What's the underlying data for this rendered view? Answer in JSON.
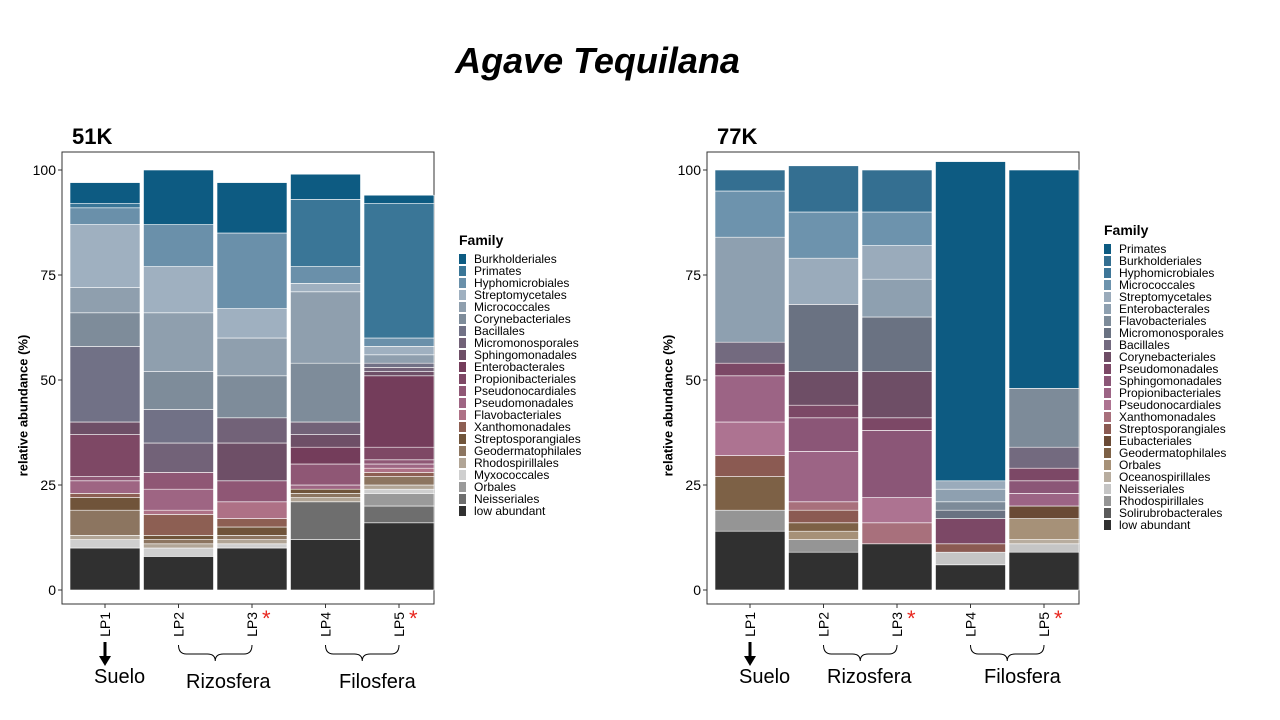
{
  "title": "Agave Tequilana",
  "chart_data": [
    {
      "type": "bar",
      "stacked": true,
      "panel_title": "51K",
      "ylabel": "relative abundance (%)",
      "ylim": [
        0,
        100
      ],
      "yticks": [
        0,
        25,
        50,
        75,
        100
      ],
      "categories": [
        "LP1",
        "LP2",
        "LP3",
        "LP4",
        "LP5"
      ],
      "significant": [
        false,
        false,
        true,
        false,
        true
      ],
      "significance_marker": "*",
      "legend_title": "Family",
      "series": [
        {
          "name": "low abundant",
          "color": "#303030",
          "values": [
            10,
            8,
            10,
            12,
            16
          ]
        },
        {
          "name": "Neisseriales",
          "color": "#6e6e6e",
          "values": [
            0,
            0,
            0,
            9,
            4
          ]
        },
        {
          "name": "Orbales",
          "color": "#9a9a9a",
          "values": [
            0,
            0,
            0,
            0,
            3
          ]
        },
        {
          "name": "Myxococcales",
          "color": "#cfcfcf",
          "values": [
            2,
            2,
            1,
            0,
            1
          ]
        },
        {
          "name": "Rhodospirillales",
          "color": "#b1a596",
          "values": [
            1,
            1,
            1,
            1,
            1
          ]
        },
        {
          "name": "Geodermatophilales",
          "color": "#8c7560",
          "values": [
            6,
            1,
            1,
            1,
            2
          ]
        },
        {
          "name": "Streptosporangiales",
          "color": "#70543a",
          "values": [
            3,
            1,
            2,
            1,
            0
          ]
        },
        {
          "name": "Xanthomonadales",
          "color": "#8d5f53",
          "values": [
            1,
            5,
            2,
            0,
            1
          ]
        },
        {
          "name": "Flavobacteriales",
          "color": "#ae7186",
          "values": [
            0,
            1,
            4,
            0,
            1
          ]
        },
        {
          "name": "Pseudomonadales",
          "color": "#9e6583",
          "values": [
            3,
            5,
            0,
            1,
            1
          ]
        },
        {
          "name": "Pseudonocardiales",
          "color": "#8f5775",
          "values": [
            1,
            4,
            5,
            5,
            1
          ]
        },
        {
          "name": "Propionibacteriales",
          "color": "#7e4865",
          "values": [
            10,
            0,
            0,
            0,
            3
          ]
        },
        {
          "name": "Enterobacterales",
          "color": "#743d5b",
          "values": [
            0,
            0,
            0,
            4,
            17
          ]
        },
        {
          "name": "Sphingomonadales",
          "color": "#6e4f67",
          "values": [
            3,
            0,
            9,
            3,
            1
          ]
        },
        {
          "name": "Micromonosporales",
          "color": "#726278",
          "values": [
            0,
            7,
            6,
            3,
            1
          ]
        },
        {
          "name": "Bacillales",
          "color": "#717186",
          "values": [
            18,
            8,
            0,
            0,
            1
          ]
        },
        {
          "name": "Corynebacteriales",
          "color": "#7e8c9a",
          "values": [
            8,
            9,
            10,
            14,
            0
          ]
        },
        {
          "name": "Micrococcales",
          "color": "#8f9fae",
          "values": [
            6,
            14,
            9,
            17,
            2
          ]
        },
        {
          "name": "Streptomycetales",
          "color": "#9fb0c0",
          "values": [
            15,
            11,
            7,
            2,
            2
          ]
        },
        {
          "name": "Hyphomicrobiales",
          "color": "#6a90aa",
          "values": [
            4,
            10,
            18,
            4,
            2
          ]
        },
        {
          "name": "Primates",
          "color": "#3a7697",
          "values": [
            1,
            0,
            0,
            16,
            32
          ]
        },
        {
          "name": "Burkholderiales",
          "color": "#0d5b82",
          "values": [
            5,
            13,
            12,
            6,
            2
          ]
        }
      ]
    },
    {
      "type": "bar",
      "stacked": true,
      "panel_title": "77K",
      "ylabel": "relative abundance (%)",
      "ylim": [
        0,
        100
      ],
      "yticks": [
        0,
        25,
        50,
        75,
        100
      ],
      "categories": [
        "LP1",
        "LP2",
        "LP3",
        "LP4",
        "LP5"
      ],
      "significant": [
        false,
        false,
        true,
        false,
        true
      ],
      "significance_marker": "*",
      "legend_title": "Family",
      "series": [
        {
          "name": "low abundant",
          "color": "#303030",
          "values": [
            14,
            9,
            11,
            6,
            9
          ]
        },
        {
          "name": "Solirubrobacterales",
          "color": "#5a5a5a",
          "values": [
            0,
            0,
            0,
            0,
            0
          ]
        },
        {
          "name": "Rhodospirillales",
          "color": "#959595",
          "values": [
            5,
            3,
            0,
            0,
            0
          ]
        },
        {
          "name": "Neisseriales",
          "color": "#c5c5c5",
          "values": [
            0,
            0,
            0,
            3,
            2
          ]
        },
        {
          "name": "Oceanospirillales",
          "color": "#b8ad9f",
          "values": [
            0,
            0,
            0,
            0,
            1
          ]
        },
        {
          "name": "Orbales",
          "color": "#a69178",
          "values": [
            0,
            2,
            0,
            0,
            5
          ]
        },
        {
          "name": "Geodermatophilales",
          "color": "#7d6146",
          "values": [
            8,
            2,
            0,
            0,
            0
          ]
        },
        {
          "name": "Eubacteriales",
          "color": "#6a4a35",
          "values": [
            0,
            0,
            0,
            0,
            3
          ]
        },
        {
          "name": "Streptosporangiales",
          "color": "#8b5a52",
          "values": [
            5,
            3,
            0,
            2,
            0
          ]
        },
        {
          "name": "Xanthomonadales",
          "color": "#a8707c",
          "values": [
            0,
            2,
            5,
            0,
            0
          ]
        },
        {
          "name": "Pseudonocardiales",
          "color": "#ad7391",
          "values": [
            8,
            0,
            6,
            0,
            0
          ]
        },
        {
          "name": "Propionibacteriales",
          "color": "#9c6485",
          "values": [
            11,
            12,
            0,
            0,
            3
          ]
        },
        {
          "name": "Sphingomonadales",
          "color": "#8b5677",
          "values": [
            0,
            8,
            16,
            0,
            3
          ]
        },
        {
          "name": "Pseudomonadales",
          "color": "#7c4866",
          "values": [
            3,
            3,
            3,
            6,
            3
          ]
        },
        {
          "name": "Corynebacteriales",
          "color": "#6e4e66",
          "values": [
            0,
            8,
            11,
            0,
            0
          ]
        },
        {
          "name": "Bacillales",
          "color": "#736a7f",
          "values": [
            5,
            0,
            0,
            0,
            5
          ]
        },
        {
          "name": "Micromonosporales",
          "color": "#6a7282",
          "values": [
            0,
            16,
            13,
            2,
            0
          ]
        },
        {
          "name": "Flavobacteriales",
          "color": "#7d8b99",
          "values": [
            0,
            0,
            0,
            2,
            14
          ]
        },
        {
          "name": "Enterobacterales",
          "color": "#8ea0b0",
          "values": [
            25,
            0,
            9,
            3,
            0
          ]
        },
        {
          "name": "Streptomycetales",
          "color": "#9aabbb",
          "values": [
            0,
            11,
            8,
            2,
            0
          ]
        },
        {
          "name": "Micrococcales",
          "color": "#6d93ad",
          "values": [
            11,
            11,
            8,
            0,
            0
          ]
        },
        {
          "name": "Hyphomicrobiales",
          "color": "#3e7698",
          "values": [
            0,
            0,
            0,
            0,
            0
          ]
        },
        {
          "name": "Burkholderiales",
          "color": "#346f91",
          "values": [
            5,
            11,
            10,
            0,
            0
          ]
        },
        {
          "name": "Primates",
          "color": "#0d5b82",
          "values": [
            0,
            0,
            0,
            76,
            52
          ]
        }
      ]
    }
  ],
  "legend_order": [
    [
      "Burkholderiales",
      "Primates",
      "Hyphomicrobiales",
      "Streptomycetales",
      "Micrococcales",
      "Corynebacteriales",
      "Bacillales",
      "Micromonosporales",
      "Sphingomonadales",
      "Enterobacterales",
      "Propionibacteriales",
      "Pseudonocardiales",
      "Pseudomonadales",
      "Flavobacteriales",
      "Xanthomonadales",
      "Streptosporangiales",
      "Geodermatophilales",
      "Rhodospirillales",
      "Myxococcales",
      "Orbales",
      "Neisseriales",
      "low abundant"
    ],
    [
      "Primates",
      "Burkholderiales",
      "Hyphomicrobiales",
      "Micrococcales",
      "Streptomycetales",
      "Enterobacterales",
      "Flavobacteriales",
      "Micromonosporales",
      "Bacillales",
      "Corynebacteriales",
      "Pseudomonadales",
      "Sphingomonadales",
      "Propionibacteriales",
      "Pseudonocardiales",
      "Xanthomonadales",
      "Streptosporangiales",
      "Eubacteriales",
      "Geodermatophilales",
      "Orbales",
      "Oceanospirillales",
      "Neisseriales",
      "Rhodospirillales",
      "Solirubrobacterales",
      "low abundant"
    ]
  ],
  "group_labels": {
    "soil": "Suelo",
    "rhizosphere": "Rizosfera",
    "phyllosphere": "Filosfera"
  }
}
